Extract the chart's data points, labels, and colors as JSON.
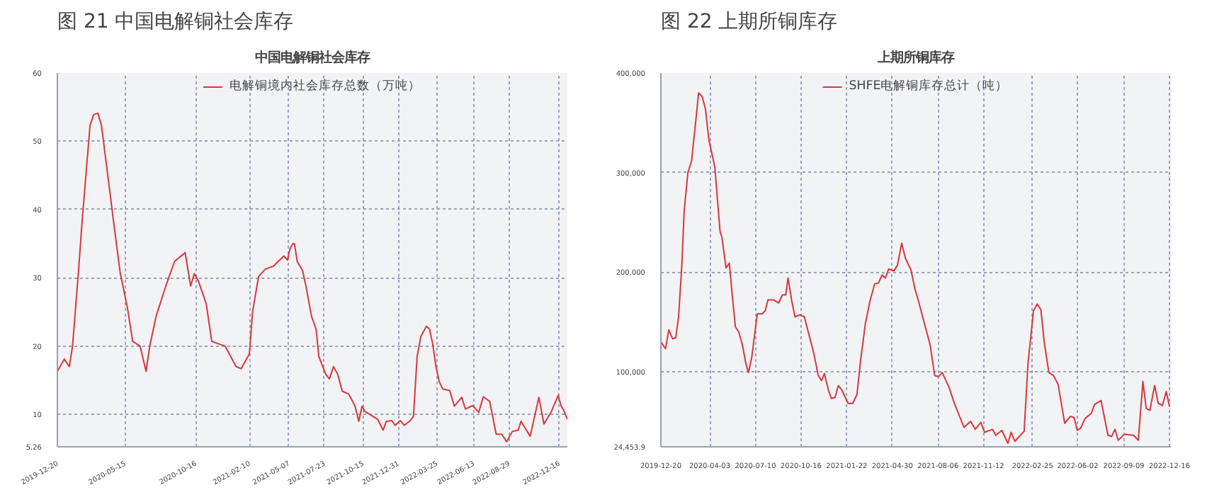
{
  "chart_data": [
    {
      "type": "line",
      "title": "图 21 中国电解铜社会库存",
      "subtitle": "中国电解铜社会库存",
      "legend": "top",
      "grid": true,
      "xlim": [
        "2019-12-20",
        "2023-01-03"
      ],
      "xticks": [
        "2019-12-20",
        "2020-05-15",
        "2020-10-16",
        "2021-02-10",
        "2021-05-07",
        "2021-07-23",
        "2021-10-15",
        "2021-12-31",
        "2022-03-25",
        "2022-06-13",
        "2022-08-29",
        "2022-12-16"
      ],
      "ylim": [
        5.26,
        60
      ],
      "yticks": [
        5.26,
        10,
        20,
        30,
        40,
        50,
        60
      ],
      "series": [
        {
          "name": "电解铜境内社会库存总数（万吨）",
          "color": "#d9363e",
          "x": [
            "2019-12-20",
            "2020-01-04",
            "2020-01-15",
            "2020-01-22",
            "2020-02-04",
            "2020-02-11",
            "2020-02-29",
            "2020-03-08",
            "2020-03-17",
            "2020-03-25",
            "2020-04-12",
            "2020-04-23",
            "2020-05-05",
            "2020-05-20",
            "2020-06-01",
            "2020-06-17",
            "2020-06-30",
            "2020-07-08",
            "2020-07-22",
            "2020-08-12",
            "2020-08-31",
            "2020-09-23",
            "2020-10-05",
            "2020-10-13",
            "2020-10-22",
            "2020-11-08",
            "2020-11-20",
            "2020-12-19",
            "2021-01-12",
            "2021-01-23",
            "2021-02-10",
            "2021-02-17",
            "2021-03-02",
            "2021-03-17",
            "2021-04-03",
            "2021-04-26",
            "2021-05-04",
            "2021-05-09",
            "2021-05-15",
            "2021-05-19",
            "2021-05-25",
            "2021-06-06",
            "2021-06-13",
            "2021-06-25",
            "2021-07-05",
            "2021-07-11",
            "2021-07-26",
            "2021-08-03",
            "2021-08-12",
            "2021-08-21",
            "2021-08-31",
            "2021-09-14",
            "2021-09-28",
            "2021-10-06",
            "2021-10-13",
            "2021-10-20",
            "2021-11-16",
            "2021-11-28",
            "2021-12-05",
            "2021-12-17",
            "2021-12-24",
            "2022-01-04",
            "2022-01-13",
            "2022-01-26",
            "2022-02-02",
            "2022-02-10",
            "2022-02-18",
            "2022-03-02",
            "2022-03-09",
            "2022-03-16",
            "2022-03-23",
            "2022-03-30",
            "2022-04-07",
            "2022-04-22",
            "2022-05-02",
            "2022-05-18",
            "2022-05-26",
            "2022-06-11",
            "2022-06-24",
            "2022-07-04",
            "2022-07-18",
            "2022-08-01",
            "2022-08-13",
            "2022-08-24",
            "2022-09-05",
            "2022-09-18",
            "2022-09-24",
            "2022-10-14",
            "2022-11-02",
            "2022-11-13",
            "2022-11-29",
            "2022-12-14",
            "2022-12-20",
            "2022-12-26",
            "2023-01-03"
          ],
          "values": [
            16.3,
            18.1,
            17.0,
            20,
            31,
            37.5,
            52.3,
            53.9,
            54.1,
            52.3,
            42.7,
            36.8,
            30.6,
            25.8,
            20.7,
            20,
            16.3,
            20,
            24.4,
            28.8,
            32.4,
            33.7,
            28.8,
            30.6,
            29.5,
            26.2,
            20.7,
            20,
            17.0,
            16.7,
            18.9,
            25.1,
            30.2,
            31.3,
            31.7,
            33.2,
            32.6,
            34.2,
            35.0,
            35.0,
            32.4,
            31.0,
            28.8,
            24.4,
            22.5,
            18.5,
            15.9,
            15.2,
            17.0,
            15.9,
            13.4,
            13.0,
            11.2,
            9.0,
            11.2,
            10.4,
            9.3,
            7.7,
            9.0,
            9.1,
            8.4,
            9.1,
            8.4,
            9.1,
            9.7,
            18.5,
            21.4,
            22.9,
            22.5,
            20.3,
            17.0,
            14.8,
            13.7,
            13.5,
            11.2,
            12.5,
            10.8,
            11.3,
            10.3,
            12.6,
            11.9,
            7.1,
            7.1,
            6.0,
            7.5,
            7.7,
            9.0,
            6.8,
            12.5,
            8.6,
            10.4,
            12.8,
            11.3,
            10.6,
            9.3
          ]
        }
      ]
    },
    {
      "type": "line",
      "title": "图 22 上期所铜库存",
      "subtitle": "上期所铜库存",
      "legend": "top",
      "grid": true,
      "xlim": [
        "2019-12-20",
        "2022-12-19"
      ],
      "xticks": [
        "2019-12-20",
        "2020-04-03",
        "2020-07-10",
        "2020-10-16",
        "2021-01-22",
        "2021-04-30",
        "2021-08-06",
        "2021-11-12",
        "2022-02-25",
        "2022-06-02",
        "2022-09-09",
        "2022-12-16"
      ],
      "ylim": [
        24453.9,
        400000
      ],
      "yticks": [
        {
          "value": 24453.9,
          "label": "24,453.9"
        },
        {
          "value": 100000,
          "label": "100,000"
        },
        {
          "value": 200000,
          "label": "200,000"
        },
        {
          "value": 300000,
          "label": "300,000"
        },
        {
          "value": 400000,
          "label": "400,000"
        }
      ],
      "series": [
        {
          "name": "SHFE电解铜库存总计（吨）",
          "color": "#d9363e",
          "x": [
            "2019-12-20",
            "2019-12-30",
            "2020-01-06",
            "2020-01-14",
            "2020-01-21",
            "2020-01-27",
            "2020-02-03",
            "2020-02-08",
            "2020-02-16",
            "2020-02-24",
            "2020-03-02",
            "2020-03-10",
            "2020-03-18",
            "2020-03-25",
            "2020-04-01",
            "2020-04-14",
            "2020-04-25",
            "2020-04-29",
            "2020-05-08",
            "2020-05-15",
            "2020-05-22",
            "2020-05-28",
            "2020-06-04",
            "2020-06-12",
            "2020-06-19",
            "2020-06-25",
            "2020-07-02",
            "2020-07-14",
            "2020-07-24",
            "2020-07-31",
            "2020-08-06",
            "2020-08-18",
            "2020-08-29",
            "2020-09-06",
            "2020-09-13",
            "2020-09-18",
            "2020-09-26",
            "2020-10-03",
            "2020-10-13",
            "2020-10-23",
            "2020-11-02",
            "2020-11-12",
            "2020-11-22",
            "2020-11-29",
            "2020-12-05",
            "2020-12-14",
            "2020-12-20",
            "2020-12-28",
            "2021-01-04",
            "2021-01-12",
            "2021-01-25",
            "2021-02-04",
            "2021-02-13",
            "2021-02-21",
            "2021-03-03",
            "2021-03-13",
            "2021-03-23",
            "2021-03-31",
            "2021-04-08",
            "2021-04-15",
            "2021-04-22",
            "2021-05-03",
            "2021-05-11",
            "2021-05-20",
            "2021-05-28",
            "2021-06-09",
            "2021-06-17",
            "2021-06-25",
            "2021-07-08",
            "2021-07-20",
            "2021-07-30",
            "2021-08-07",
            "2021-08-15",
            "2021-08-29",
            "2021-09-11",
            "2021-10-01",
            "2021-10-15",
            "2021-10-25",
            "2021-11-06",
            "2021-11-14",
            "2021-12-01",
            "2021-12-08",
            "2021-12-21",
            "2022-01-03",
            "2022-01-10",
            "2022-01-18",
            "2022-02-07",
            "2022-02-15",
            "2022-02-27",
            "2022-03-07",
            "2022-03-15",
            "2022-03-22",
            "2022-04-01",
            "2022-04-11",
            "2022-04-21",
            "2022-05-05",
            "2022-05-17",
            "2022-05-25",
            "2022-06-01",
            "2022-06-08",
            "2022-06-18",
            "2022-07-01",
            "2022-07-08",
            "2022-07-22",
            "2022-08-06",
            "2022-08-14",
            "2022-08-21",
            "2022-08-28",
            "2022-09-10",
            "2022-09-30",
            "2022-10-10",
            "2022-10-20",
            "2022-10-27",
            "2022-11-04",
            "2022-11-14",
            "2022-11-22",
            "2022-12-01",
            "2022-12-09",
            "2022-12-16"
          ],
          "values": [
            130000,
            123000,
            142000,
            133000,
            134000,
            155000,
            207000,
            261000,
            300000,
            312000,
            343000,
            380000,
            376000,
            363000,
            333000,
            305000,
            241000,
            235000,
            204000,
            209000,
            173000,
            145000,
            140000,
            127000,
            109000,
            99000,
            114000,
            158000,
            158000,
            161000,
            172000,
            172000,
            169000,
            177000,
            177000,
            194000,
            171000,
            155000,
            157000,
            155000,
            137000,
            119000,
            96000,
            91000,
            98000,
            81000,
            73000,
            74000,
            86000,
            81000,
            68000,
            68000,
            77000,
            112000,
            148000,
            171000,
            188000,
            189000,
            197000,
            194000,
            203000,
            201000,
            207000,
            229000,
            214000,
            202000,
            184000,
            171000,
            148000,
            127000,
            96000,
            95000,
            99000,
            85000,
            67000,
            44000,
            50000,
            42000,
            49000,
            39000,
            42000,
            36000,
            41000,
            28000,
            39000,
            30000,
            40000,
            107000,
            161000,
            168000,
            162000,
            130000,
            99000,
            96000,
            87000,
            48000,
            55000,
            54000,
            41000,
            43000,
            53000,
            58000,
            67000,
            71000,
            36000,
            35000,
            42000,
            31000,
            37000,
            36000,
            31000,
            90000,
            63000,
            61000,
            86000,
            68000,
            66000,
            80000,
            65000
          ]
        }
      ]
    }
  ]
}
